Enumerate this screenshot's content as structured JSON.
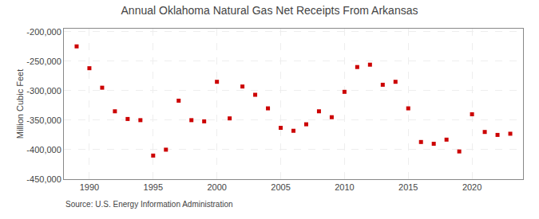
{
  "chart_data": {
    "type": "scatter",
    "title": "Annual Oklahoma Natural Gas Net Receipts From Arkansas",
    "ylabel": "Million Cubic Feet",
    "annotations": [
      "Source: U.S. Energy Information Administration"
    ],
    "x": [
      1989,
      1990,
      1991,
      1992,
      1993,
      1994,
      1995,
      1996,
      1997,
      1998,
      1999,
      2000,
      2001,
      2002,
      2003,
      2004,
      2005,
      2006,
      2007,
      2008,
      2009,
      2010,
      2011,
      2012,
      2013,
      2014,
      2015,
      2016,
      2017,
      2018,
      2019,
      2020,
      2021,
      2022,
      2023
    ],
    "values": [
      -225000,
      -262000,
      -295000,
      -335000,
      -348000,
      -350000,
      -410000,
      -400000,
      -317000,
      -350000,
      -352000,
      -285000,
      -347000,
      -293000,
      -307000,
      -330000,
      -363000,
      -368000,
      -357000,
      -335000,
      -345000,
      -302000,
      -260000,
      -256000,
      -290000,
      -285000,
      -330000,
      -387000,
      -390000,
      -383000,
      -403000,
      -340000,
      -370000,
      -375000,
      -373000
    ],
    "color": "#cc0000",
    "marker": "square",
    "xlim": [
      1988,
      2024
    ],
    "xticks": [
      1990,
      1995,
      2000,
      2005,
      2010,
      2015,
      2020
    ],
    "ylim": [
      -450000,
      -195000
    ],
    "yticks": [
      {
        "value": -200000,
        "label": "-200,000"
      },
      {
        "value": -250000,
        "label": "-250,000"
      },
      {
        "value": -300000,
        "label": "-300,000"
      },
      {
        "value": -350000,
        "label": "-350,000"
      },
      {
        "value": -400000,
        "label": "-400,000"
      },
      {
        "value": -450000,
        "label": "-450,000"
      }
    ],
    "grid": true
  }
}
